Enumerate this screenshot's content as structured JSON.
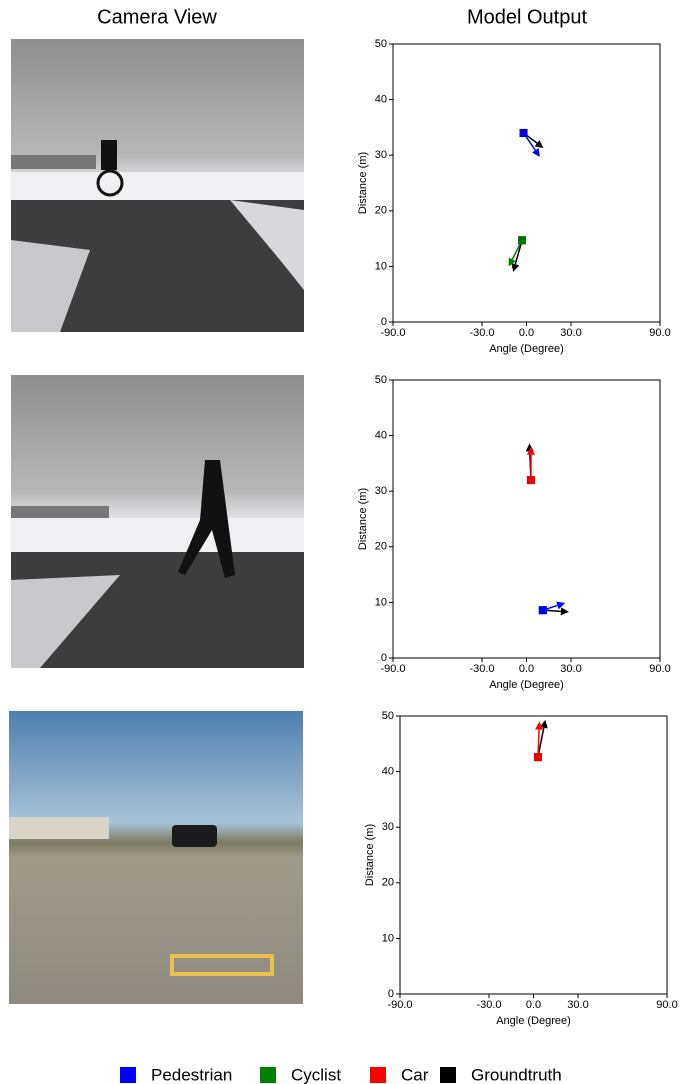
{
  "header": {
    "left": "Camera View",
    "right": "Model Output"
  },
  "legend": [
    {
      "name": "Pedestrian",
      "color": "#0000ff"
    },
    {
      "name": "Cyclist",
      "color": "#008000"
    },
    {
      "name": "Car",
      "color": "#ff0000"
    },
    {
      "name": "Groundtruth",
      "color": "#000000"
    }
  ],
  "chart_data": [
    {
      "type": "scatter",
      "xlabel": "Angle (Degree)",
      "ylabel": "Distance (m)",
      "xlim": [
        -90,
        90
      ],
      "ylim": [
        0,
        50
      ],
      "xticks": [
        {
          "value": -90,
          "label": "-90.0"
        },
        {
          "value": -30,
          "label": "-30.0"
        },
        {
          "value": 0,
          "label": "0.0"
        },
        {
          "value": 30,
          "label": "30.0"
        },
        {
          "value": 90,
          "label": "90.0"
        }
      ],
      "yticks": [
        0,
        10,
        20,
        30,
        40,
        50
      ],
      "series": [
        {
          "color": "#000000",
          "x": [
            -2,
            -3
          ],
          "y": [
            34,
            14.7
          ],
          "arrow_x": [
            11.4,
            -9
          ],
          "arrow_y": [
            31.3,
            9
          ]
        },
        {
          "color": "#0000ff",
          "x": [
            -2
          ],
          "y": [
            34
          ],
          "arrow_x": [
            9
          ],
          "arrow_y": [
            29.7
          ]
        },
        {
          "color": "#008000",
          "x": [
            -3
          ],
          "y": [
            14.7
          ],
          "arrow_x": [
            -12
          ],
          "arrow_y": [
            10
          ]
        }
      ]
    },
    {
      "type": "scatter",
      "xlabel": "Angle (Degree)",
      "ylabel": "Distance (m)",
      "xlim": [
        -90,
        90
      ],
      "ylim": [
        0,
        50
      ],
      "xticks": [
        {
          "value": -90,
          "label": "-90.0"
        },
        {
          "value": -30,
          "label": "-30.0"
        },
        {
          "value": 0,
          "label": "0.0"
        },
        {
          "value": 30,
          "label": "30.0"
        },
        {
          "value": 90,
          "label": "90.0"
        }
      ],
      "yticks": [
        0,
        10,
        20,
        30,
        40,
        50
      ],
      "series": [
        {
          "color": "#000000",
          "x": [
            3,
            11
          ],
          "y": [
            32,
            8.6
          ],
          "arrow_x": [
            2,
            28.6
          ],
          "arrow_y": [
            38.6,
            8.3
          ]
        },
        {
          "color": "#ff0000",
          "x": [
            3
          ],
          "y": [
            32
          ],
          "arrow_x": [
            3
          ],
          "arrow_y": [
            38
          ]
        },
        {
          "color": "#0000ff",
          "x": [
            11
          ],
          "y": [
            8.6
          ],
          "arrow_x": [
            26
          ],
          "arrow_y": [
            9.9
          ]
        }
      ]
    },
    {
      "type": "scatter",
      "xlabel": "Angle (Degree)",
      "ylabel": "Distance (m)",
      "xlim": [
        -90,
        90
      ],
      "ylim": [
        0,
        50
      ],
      "xticks": [
        {
          "value": -90,
          "label": "-90.0"
        },
        {
          "value": -30,
          "label": "-30.0"
        },
        {
          "value": 0,
          "label": "0.0"
        },
        {
          "value": 30,
          "label": "30.0"
        },
        {
          "value": 90,
          "label": "90.0"
        }
      ],
      "yticks": [
        0,
        10,
        20,
        30,
        40,
        50
      ],
      "series": [
        {
          "color": "#000000",
          "x": [
            3
          ],
          "y": [
            42.6
          ],
          "arrow_x": [
            8
          ],
          "arrow_y": [
            49.3
          ]
        },
        {
          "color": "#ff0000",
          "x": [
            3
          ],
          "y": [
            42.6
          ],
          "arrow_x": [
            4
          ],
          "arrow_y": [
            49
          ]
        }
      ]
    }
  ]
}
